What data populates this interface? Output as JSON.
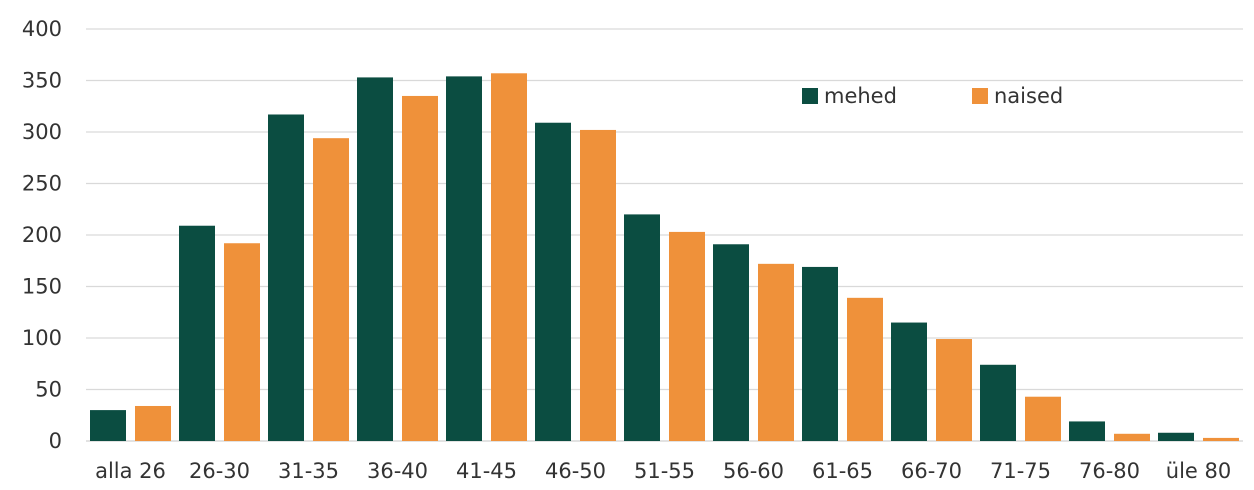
{
  "chart_data": {
    "type": "bar",
    "categories": [
      "alla 26",
      "26-30",
      "31-35",
      "36-40",
      "41-45",
      "46-50",
      "51-55",
      "56-60",
      "61-65",
      "66-70",
      "71-75",
      "76-80",
      "üle 80"
    ],
    "series": [
      {
        "name": "mehed",
        "color": "#0b4d41",
        "values": [
          30,
          209,
          317,
          353,
          354,
          309,
          220,
          191,
          169,
          115,
          74,
          19,
          8
        ]
      },
      {
        "name": "naised",
        "color": "#ef913a",
        "values": [
          34,
          192,
          294,
          335,
          357,
          302,
          203,
          172,
          139,
          99,
          43,
          7,
          3
        ]
      }
    ],
    "ylim": [
      0,
      400
    ],
    "yticks": [
      0,
      50,
      100,
      150,
      200,
      250,
      300,
      350,
      400
    ],
    "grid": true,
    "legend": "top-right",
    "title": "",
    "xlabel": "",
    "ylabel": ""
  }
}
